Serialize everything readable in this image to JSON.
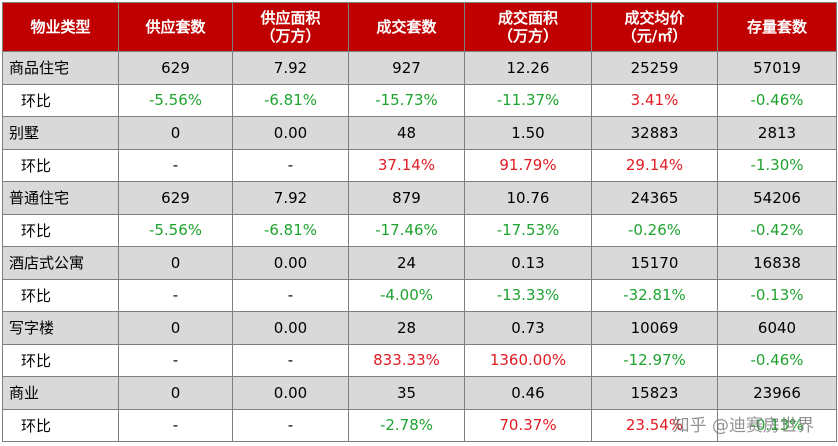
{
  "columns": [
    [
      "物业类型"
    ],
    [
      "供应套数"
    ],
    [
      "供应面积",
      "（万方）"
    ],
    [
      "成交套数"
    ],
    [
      "成交面积",
      "（万方）"
    ],
    [
      "成交均价",
      "（元/㎡）"
    ],
    [
      "存量套数"
    ]
  ],
  "rows": [
    {
      "label": "商品住宅",
      "kind": "main",
      "cells": [
        {
          "v": "629"
        },
        {
          "v": "7.92"
        },
        {
          "v": "927"
        },
        {
          "v": "12.26"
        },
        {
          "v": "25259"
        },
        {
          "v": "57019"
        }
      ]
    },
    {
      "label": "环比",
      "kind": "mom",
      "cells": [
        {
          "v": "-5.56%",
          "t": "down"
        },
        {
          "v": "-6.81%",
          "t": "down"
        },
        {
          "v": "-15.73%",
          "t": "down"
        },
        {
          "v": "-11.37%",
          "t": "down"
        },
        {
          "v": "3.41%",
          "t": "up"
        },
        {
          "v": "-0.46%",
          "t": "down"
        }
      ]
    },
    {
      "label": "别墅",
      "kind": "main",
      "cells": [
        {
          "v": "0"
        },
        {
          "v": "0.00"
        },
        {
          "v": "48"
        },
        {
          "v": "1.50"
        },
        {
          "v": "32883"
        },
        {
          "v": "2813"
        }
      ]
    },
    {
      "label": "环比",
      "kind": "mom",
      "cells": [
        {
          "v": "-"
        },
        {
          "v": "-"
        },
        {
          "v": "37.14%",
          "t": "up"
        },
        {
          "v": "91.79%",
          "t": "up"
        },
        {
          "v": "29.14%",
          "t": "up"
        },
        {
          "v": "-1.30%",
          "t": "down"
        }
      ]
    },
    {
      "label": "普通住宅",
      "kind": "main",
      "cells": [
        {
          "v": "629"
        },
        {
          "v": "7.92"
        },
        {
          "v": "879"
        },
        {
          "v": "10.76"
        },
        {
          "v": "24365"
        },
        {
          "v": "54206"
        }
      ]
    },
    {
      "label": "环比",
      "kind": "mom",
      "cells": [
        {
          "v": "-5.56%",
          "t": "down"
        },
        {
          "v": "-6.81%",
          "t": "down"
        },
        {
          "v": "-17.46%",
          "t": "down"
        },
        {
          "v": "-17.53%",
          "t": "down"
        },
        {
          "v": "-0.26%",
          "t": "down"
        },
        {
          "v": "-0.42%",
          "t": "down"
        }
      ]
    },
    {
      "label": "酒店式公寓",
      "kind": "main",
      "cells": [
        {
          "v": "0"
        },
        {
          "v": "0.00"
        },
        {
          "v": "24"
        },
        {
          "v": "0.13"
        },
        {
          "v": "15170"
        },
        {
          "v": "16838"
        }
      ]
    },
    {
      "label": "环比",
      "kind": "mom",
      "cells": [
        {
          "v": "-"
        },
        {
          "v": "-"
        },
        {
          "v": "-4.00%",
          "t": "down"
        },
        {
          "v": "-13.33%",
          "t": "down"
        },
        {
          "v": "-32.81%",
          "t": "down"
        },
        {
          "v": "-0.13%",
          "t": "down"
        }
      ]
    },
    {
      "label": "写字楼",
      "kind": "main",
      "cells": [
        {
          "v": "0"
        },
        {
          "v": "0.00"
        },
        {
          "v": "28"
        },
        {
          "v": "0.73"
        },
        {
          "v": "10069"
        },
        {
          "v": "6040"
        }
      ]
    },
    {
      "label": "环比",
      "kind": "mom",
      "cells": [
        {
          "v": "-"
        },
        {
          "v": "-"
        },
        {
          "v": "833.33%",
          "t": "up"
        },
        {
          "v": "1360.00%",
          "t": "up"
        },
        {
          "v": "-12.97%",
          "t": "down"
        },
        {
          "v": "-0.46%",
          "t": "down"
        }
      ]
    },
    {
      "label": "商业",
      "kind": "main",
      "cells": [
        {
          "v": "0"
        },
        {
          "v": "0.00"
        },
        {
          "v": "35"
        },
        {
          "v": "0.46"
        },
        {
          "v": "15823"
        },
        {
          "v": "23966"
        }
      ]
    },
    {
      "label": "环比",
      "kind": "mom",
      "cells": [
        {
          "v": "-"
        },
        {
          "v": "-"
        },
        {
          "v": "-2.78%",
          "t": "down"
        },
        {
          "v": "70.37%",
          "t": "up"
        },
        {
          "v": "23.54%",
          "t": "up"
        },
        {
          "v": "-0.13%",
          "t": "down"
        }
      ]
    }
  ],
  "colors": {
    "header_bg": "#c00000",
    "header_text": "#ffffff",
    "row_grey": "#d9d9d9",
    "increase": "#e31b23",
    "decrease": "#1fa32f"
  },
  "watermark": "知乎 @迪赛房世界"
}
